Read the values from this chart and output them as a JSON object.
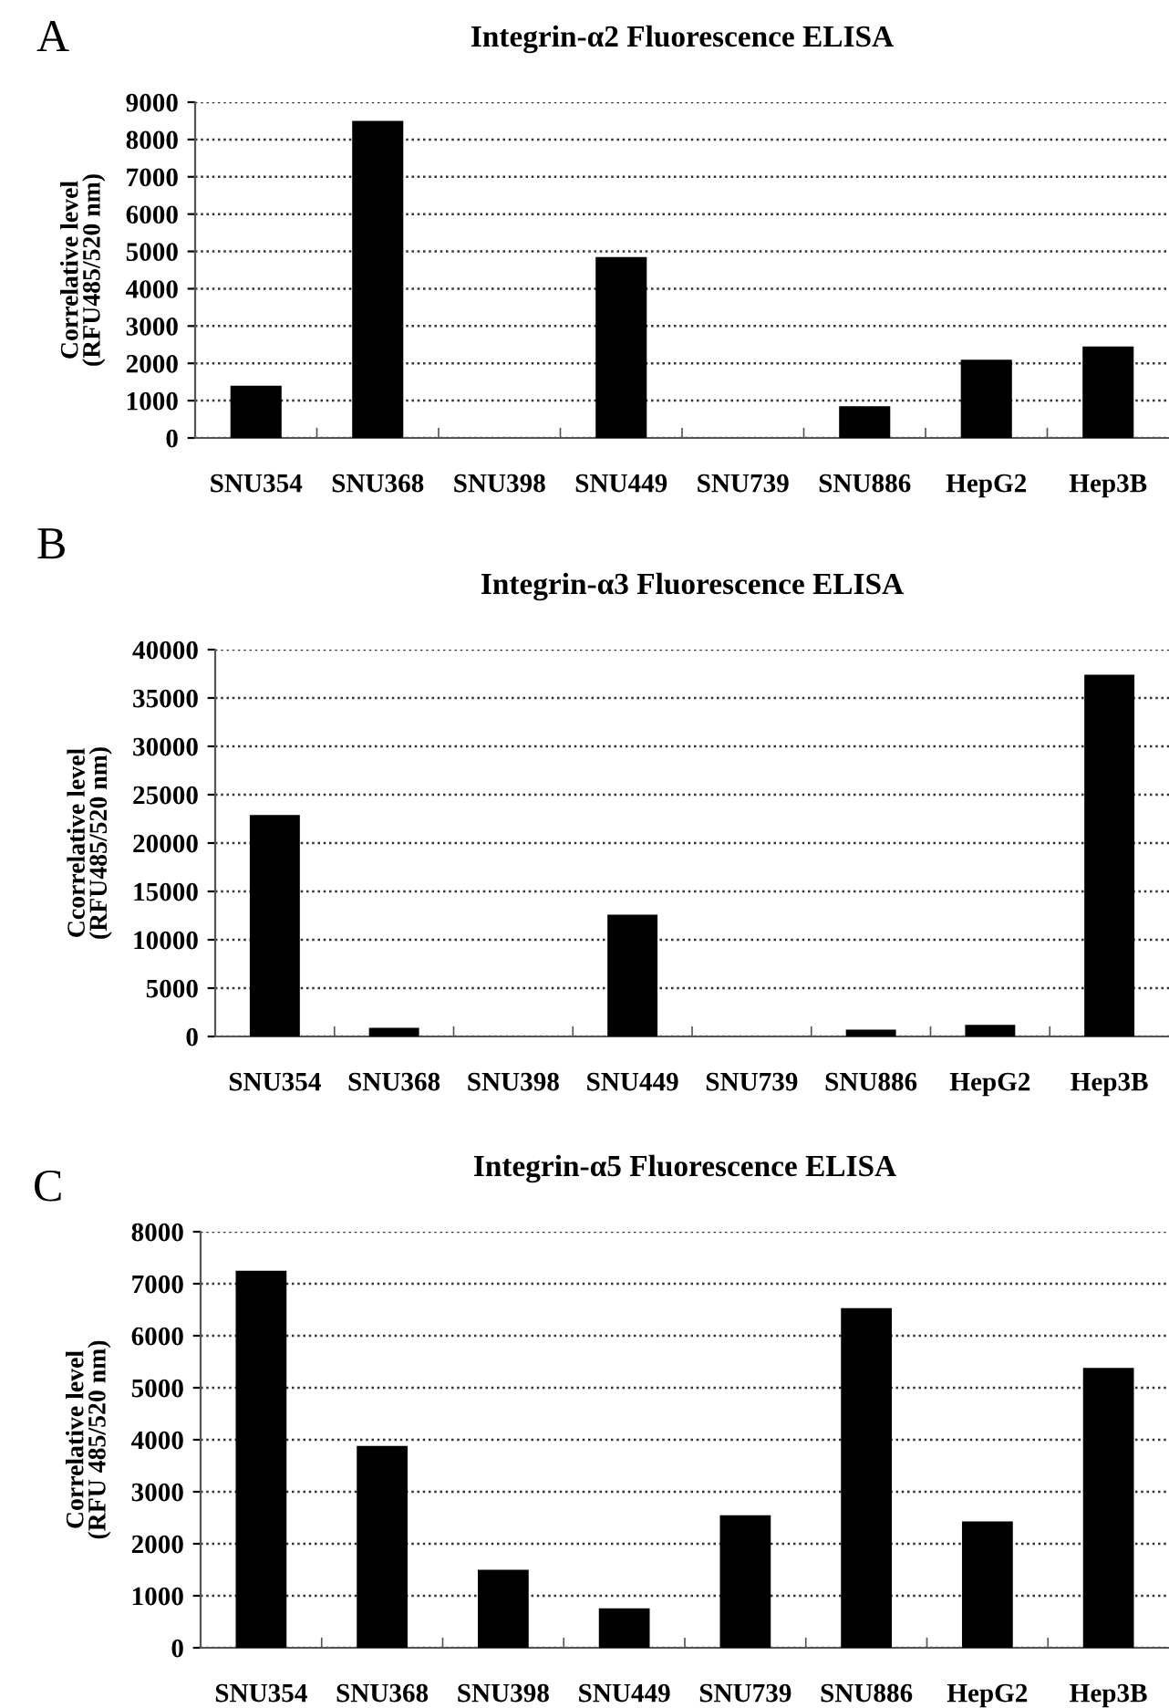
{
  "chart_data": [
    {
      "type": "bar",
      "title": "Integrin-α2 Fluorescence ELISA",
      "ylabel": "Correlative level\n(RFU485/520 nm)",
      "annotations": [
        "A"
      ],
      "categories": [
        "SNU354",
        "SNU368",
        "SNU398",
        "SNU449",
        "SNU739",
        "SNU886",
        "HepG2",
        "Hep3B"
      ],
      "values": [
        1400,
        8500,
        0,
        4850,
        0,
        850,
        2100,
        2450
      ],
      "color": "#000000",
      "ylim": [
        0,
        9000
      ],
      "yticks": [
        0,
        1000,
        2000,
        3000,
        4000,
        5000,
        6000,
        7000,
        8000,
        9000
      ],
      "grid": "y"
    },
    {
      "type": "bar",
      "title": "Integrin-α3 Fluorescence ELISA",
      "ylabel": "Ccorrelative level\n(RFU485/520 nm)",
      "annotations": [
        "B"
      ],
      "categories": [
        "SNU354",
        "SNU368",
        "SNU398",
        "SNU449",
        "SNU739",
        "SNU886",
        "HepG2",
        "Hep3B"
      ],
      "values": [
        22900,
        900,
        0,
        12600,
        0,
        700,
        1200,
        37400
      ],
      "color": "#000000",
      "ylim": [
        0,
        40000
      ],
      "yticks": [
        0,
        5000,
        10000,
        15000,
        20000,
        25000,
        30000,
        35000,
        40000
      ],
      "grid": "y"
    },
    {
      "type": "bar",
      "title": "Integrin-α5 Fluorescence ELISA",
      "ylabel": "Correlative level\n(RFU 485/520 nm)",
      "annotations": [
        "C"
      ],
      "categories": [
        "SNU354",
        "SNU368",
        "SNU398",
        "SNU449",
        "SNU739",
        "SNU886",
        "HepG2",
        "Hep3B"
      ],
      "values": [
        7250,
        3880,
        1500,
        760,
        2550,
        6530,
        2430,
        5380
      ],
      "color": "#000000",
      "ylim": [
        0,
        8000
      ],
      "yticks": [
        0,
        1000,
        2000,
        3000,
        4000,
        5000,
        6000,
        7000,
        8000
      ],
      "grid": "y"
    }
  ]
}
